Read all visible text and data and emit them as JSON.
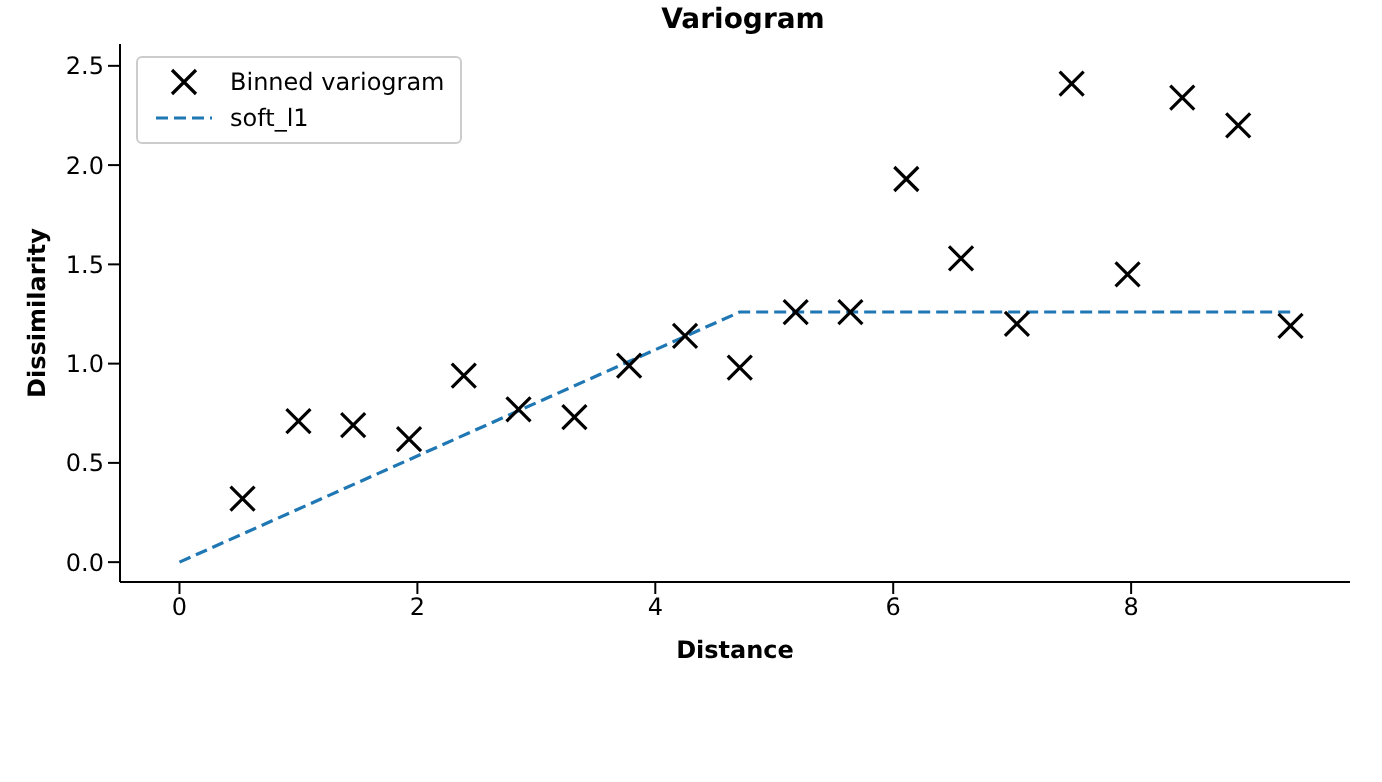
{
  "chart_data": {
    "type": "scatter",
    "title": "Variogram",
    "xlabel": "Distance",
    "ylabel": "Dissimilarity",
    "series": [
      {
        "name": "Binned variogram",
        "color": "#000000",
        "marker": "cross",
        "x": [
          0.53,
          1.0,
          1.46,
          1.93,
          2.39,
          2.85,
          3.32,
          3.78,
          4.25,
          4.71,
          5.18,
          5.64,
          6.11,
          6.57,
          7.04,
          7.5,
          7.97,
          8.43,
          8.9,
          9.34
        ],
        "values": [
          0.32,
          0.71,
          0.69,
          0.62,
          0.94,
          0.77,
          0.73,
          0.99,
          1.14,
          0.98,
          1.26,
          1.26,
          1.93,
          1.53,
          1.2,
          2.41,
          1.45,
          2.34,
          2.2,
          1.19
        ]
      },
      {
        "name": "soft_l1",
        "type": "line",
        "color": "#1f77b4",
        "line_style": "dashed",
        "marker": "none",
        "x": [
          0,
          4.71,
          9.34
        ],
        "values": [
          0,
          1.26,
          1.26
        ]
      }
    ],
    "xlim": [
      -0.5,
      9.84
    ],
    "xticks": [
      0,
      2,
      4,
      6,
      8
    ],
    "ylim": [
      -0.1,
      2.61
    ],
    "yticks": [
      {
        "value": 0,
        "label": "0.0"
      },
      {
        "value": 0.5,
        "label": "0.5"
      },
      {
        "value": 1,
        "label": "1.0"
      },
      {
        "value": 1.5,
        "label": "1.5"
      },
      {
        "value": 2,
        "label": "2.0"
      },
      {
        "value": 2.5,
        "label": "2.5"
      }
    ],
    "grid": false,
    "legend": "top left"
  }
}
